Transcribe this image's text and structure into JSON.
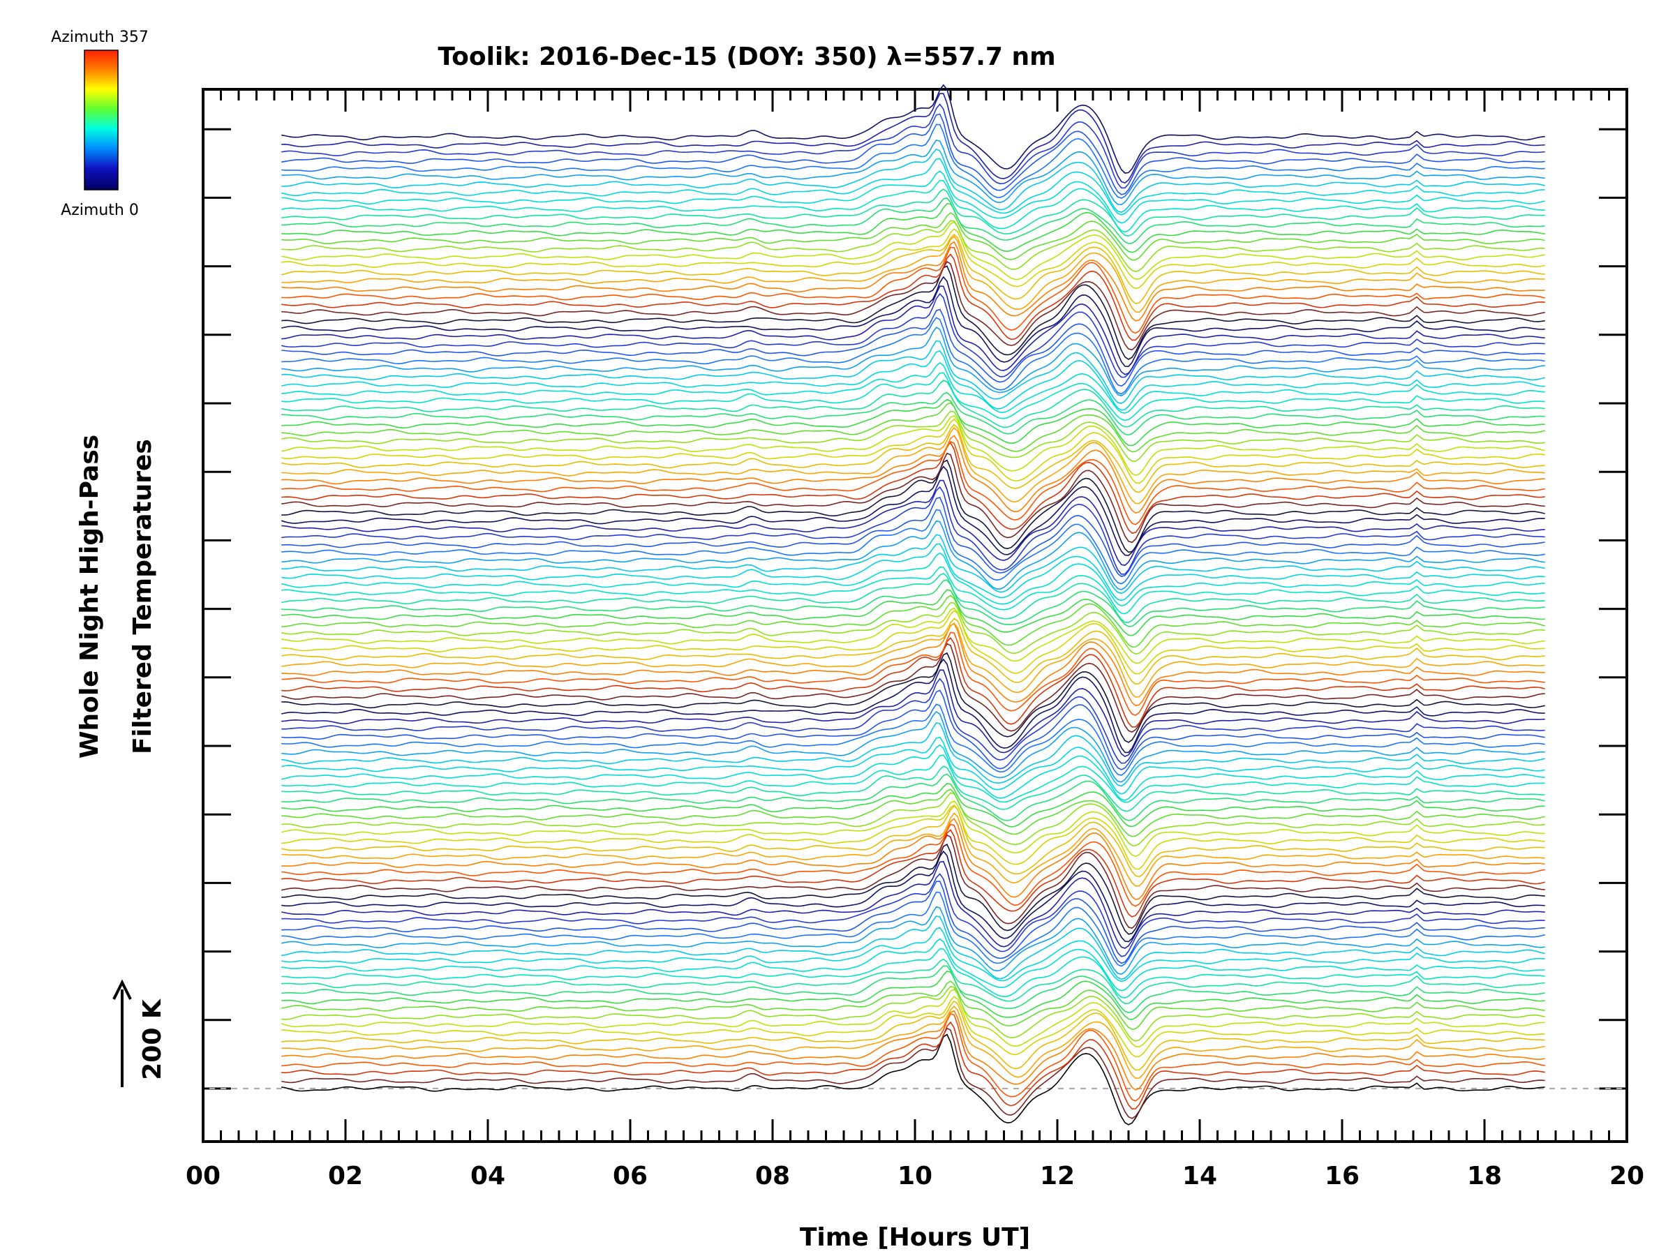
{
  "chart_data": {
    "type": "line",
    "title": "Toolik: 2016-Dec-15 (DOY: 350) λ=557.7 nm",
    "xlabel": "Time [Hours UT]",
    "ylabel_line1": "Whole Night High-Pass",
    "ylabel_line2": "Filtered Temperatures",
    "scale_label": "200 K",
    "xlim": [
      0,
      20
    ],
    "x_ticks": [
      "00",
      "02",
      "04",
      "06",
      "08",
      "10",
      "12",
      "14",
      "16",
      "18",
      "20"
    ],
    "colorbar": {
      "top_label": "Azimuth 357",
      "bottom_label": "Azimuth 0",
      "colors": [
        "#ff0000",
        "#ff8000",
        "#ffff00",
        "#00ff00",
        "#00ffff",
        "#0060ff",
        "#0000c0",
        "#000040"
      ]
    },
    "series_description": "Stacked high-pass filtered temperature traces, one per azimuth, offset vertically",
    "trace_start_hour": 1.1,
    "trace_end_hour": 18.85,
    "trace_count": 120,
    "events": [
      {
        "hour": 10.1,
        "amplitude_K": 60
      },
      {
        "hour": 10.45,
        "amplitude_K": 90
      },
      {
        "hour": 11.3,
        "amplitude_K": -70
      },
      {
        "hour": 12.4,
        "amplitude_K": 70
      },
      {
        "hour": 13.0,
        "amplitude_K": -80
      }
    ]
  }
}
